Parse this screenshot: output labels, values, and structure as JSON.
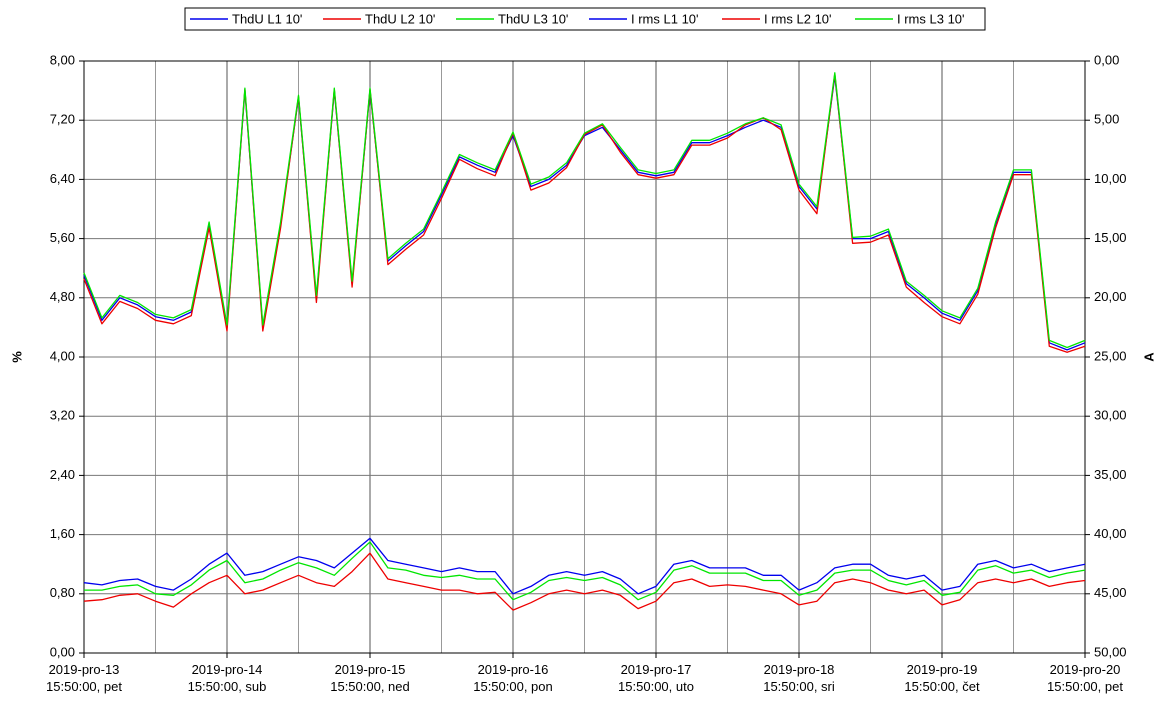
{
  "chart_data": {
    "type": "line",
    "y_label": "%",
    "y2_label": "A",
    "x": [
      0,
      3,
      6,
      9,
      12,
      15,
      18,
      21,
      24,
      27,
      30,
      33,
      36,
      39,
      42,
      45,
      48,
      51,
      54,
      57,
      60,
      63,
      66,
      69,
      72,
      75,
      78,
      81,
      84,
      87,
      90,
      93,
      96,
      99,
      102,
      105,
      108,
      111,
      114,
      117,
      120,
      123,
      126,
      129,
      132,
      135,
      138,
      141,
      144,
      147,
      150,
      153,
      156,
      159,
      162,
      165,
      168
    ],
    "xlim": [
      0,
      168
    ],
    "xticks": [
      {
        "value": 0,
        "label": "2019-pro-13 15:50:00, pet"
      },
      {
        "value": 24,
        "label": "2019-pro-14 15:50:00, sub"
      },
      {
        "value": 48,
        "label": "2019-pro-15 15:50:00, ned"
      },
      {
        "value": 72,
        "label": "2019-pro-16 15:50:00, pon"
      },
      {
        "value": 96,
        "label": "2019-pro-17 15:50:00, uto"
      },
      {
        "value": 120,
        "label": "2019-pro-18 15:50:00, sri"
      },
      {
        "value": 144,
        "label": "2019-pro-19 15:50:00, čet"
      },
      {
        "value": 168,
        "label": "2019-pro-20 15:50:00, pet"
      }
    ],
    "ylim": [
      0,
      8
    ],
    "yticks": [
      {
        "value": 0,
        "label": "0,00"
      },
      {
        "value": 0.8,
        "label": "0,80"
      },
      {
        "value": 1.6,
        "label": "1,60"
      },
      {
        "value": 2.4,
        "label": "2,40"
      },
      {
        "value": 3.2,
        "label": "3,20"
      },
      {
        "value": 4,
        "label": "4,00"
      },
      {
        "value": 4.8,
        "label": "4,80"
      },
      {
        "value": 5.6,
        "label": "5,60"
      },
      {
        "value": 6.4,
        "label": "6,40"
      },
      {
        "value": 7.2,
        "label": "7,20"
      },
      {
        "value": 8,
        "label": "8,00"
      }
    ],
    "y2lim": [
      50,
      0
    ],
    "y2ticks": [
      {
        "value": 0,
        "label": "0,00"
      },
      {
        "value": 5,
        "label": "5,00"
      },
      {
        "value": 10,
        "label": "10,00"
      },
      {
        "value": 15,
        "label": "15,00"
      },
      {
        "value": 20,
        "label": "20,00"
      },
      {
        "value": 25,
        "label": "25,00"
      },
      {
        "value": 30,
        "label": "30,00"
      },
      {
        "value": 35,
        "label": "35,00"
      },
      {
        "value": 40,
        "label": "40,00"
      },
      {
        "value": 45,
        "label": "45,00"
      },
      {
        "value": 50,
        "label": "50,00"
      }
    ],
    "grid": true,
    "legend": "top",
    "series": [
      {
        "name": "ThdU L1 10'",
        "color": "#0000ee",
        "values": [
          0.95,
          0.92,
          0.98,
          1.0,
          0.9,
          0.85,
          1.0,
          1.2,
          1.35,
          1.05,
          1.1,
          1.2,
          1.3,
          1.25,
          1.15,
          1.35,
          1.55,
          1.25,
          1.2,
          1.15,
          1.1,
          1.15,
          1.1,
          1.1,
          0.8,
          0.9,
          1.05,
          1.1,
          1.05,
          1.1,
          1.0,
          0.8,
          0.9,
          1.2,
          1.25,
          1.15,
          1.15,
          1.15,
          1.05,
          1.05,
          0.85,
          0.95,
          1.15,
          1.2,
          1.2,
          1.05,
          1.0,
          1.05,
          0.85,
          0.9,
          1.2,
          1.25,
          1.15,
          1.2,
          1.1,
          1.15,
          1.2
        ]
      },
      {
        "name": "ThdU L2 10'",
        "color": "#ee0000",
        "values": [
          0.7,
          0.72,
          0.78,
          0.8,
          0.7,
          0.62,
          0.8,
          0.95,
          1.05,
          0.8,
          0.85,
          0.95,
          1.05,
          0.95,
          0.9,
          1.1,
          1.35,
          1.0,
          0.95,
          0.9,
          0.85,
          0.85,
          0.8,
          0.82,
          0.58,
          0.68,
          0.8,
          0.85,
          0.8,
          0.85,
          0.78,
          0.6,
          0.7,
          0.95,
          1.0,
          0.9,
          0.92,
          0.9,
          0.85,
          0.8,
          0.65,
          0.7,
          0.95,
          1.0,
          0.95,
          0.85,
          0.8,
          0.85,
          0.65,
          0.72,
          0.95,
          1.0,
          0.95,
          1.0,
          0.9,
          0.95,
          0.98
        ]
      },
      {
        "name": "ThdU L3 10'",
        "color": "#00e600",
        "values": [
          0.85,
          0.85,
          0.9,
          0.92,
          0.8,
          0.78,
          0.92,
          1.12,
          1.25,
          0.95,
          1.0,
          1.12,
          1.22,
          1.15,
          1.05,
          1.28,
          1.5,
          1.15,
          1.12,
          1.05,
          1.02,
          1.05,
          1.0,
          1.0,
          0.72,
          0.82,
          0.98,
          1.02,
          0.98,
          1.02,
          0.92,
          0.72,
          0.82,
          1.12,
          1.18,
          1.08,
          1.08,
          1.08,
          0.98,
          0.98,
          0.78,
          0.85,
          1.08,
          1.12,
          1.12,
          0.98,
          0.92,
          0.98,
          0.78,
          0.82,
          1.12,
          1.18,
          1.08,
          1.12,
          1.02,
          1.08,
          1.12
        ]
      },
      {
        "name": "I rms L1 10'",
        "color": "#0000ee",
        "axis": "y2",
        "values": [
          18.1,
          21.9,
          20,
          20.6,
          21.6,
          21.9,
          21.2,
          13.8,
          22.5,
          2.5,
          22.5,
          13.8,
          3.1,
          20,
          2.5,
          18.8,
          2.5,
          16.9,
          15.6,
          14.4,
          11.3,
          8.1,
          8.8,
          9.4,
          6.3,
          10.6,
          10,
          8.8,
          6.3,
          5.6,
          7.5,
          9.4,
          9.7,
          9.4,
          6.9,
          6.9,
          6.3,
          5.6,
          5,
          5.6,
          10.6,
          12.5,
          1.3,
          15,
          15,
          14.4,
          18.8,
          20,
          21.3,
          21.9,
          19.4,
          13.8,
          9.4,
          9.4,
          23.8,
          24.4,
          23.8
        ]
      },
      {
        "name": "I rms L2 10'",
        "color": "#ee0000",
        "axis": "y2",
        "values": [
          18.4,
          22.2,
          20.3,
          20.9,
          21.9,
          22.2,
          21.5,
          14.1,
          22.8,
          2.4,
          22.8,
          14.1,
          3.0,
          20.4,
          2.4,
          19.1,
          2.4,
          17.2,
          15.9,
          14.7,
          11.6,
          8.3,
          9.1,
          9.7,
          6.1,
          10.9,
          10.3,
          9.0,
          6.2,
          5.4,
          7.7,
          9.6,
          9.9,
          9.6,
          7.1,
          7.1,
          6.5,
          5.4,
          4.8,
          5.8,
          10.9,
          12.9,
          1.1,
          15.4,
          15.3,
          14.7,
          19.1,
          20.4,
          21.6,
          22.2,
          19.7,
          14.1,
          9.6,
          9.6,
          24.1,
          24.6,
          24.1
        ]
      },
      {
        "name": "I rms L3 10'",
        "color": "#00e600",
        "axis": "y2",
        "values": [
          17.9,
          21.7,
          19.8,
          20.4,
          21.4,
          21.7,
          21.0,
          13.6,
          22.3,
          2.3,
          22.3,
          13.6,
          2.9,
          19.8,
          2.3,
          18.6,
          2.3,
          16.7,
          15.4,
          14.2,
          11.1,
          7.9,
          8.6,
          9.2,
          6.0,
          10.4,
          9.8,
          8.6,
          6.1,
          5.3,
          7.3,
          9.2,
          9.5,
          9.2,
          6.7,
          6.7,
          6.1,
          5.3,
          4.8,
          5.4,
          10.4,
          12.3,
          1.0,
          14.9,
          14.8,
          14.2,
          18.6,
          19.8,
          21.1,
          21.7,
          19.2,
          13.6,
          9.2,
          9.2,
          23.6,
          24.2,
          23.6
        ]
      }
    ]
  }
}
